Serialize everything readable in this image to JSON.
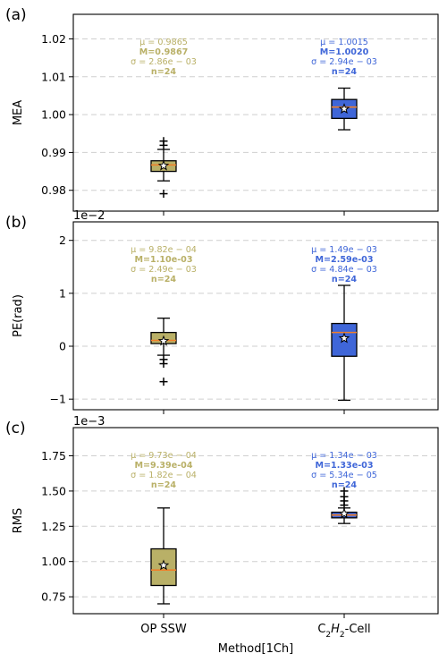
{
  "colors": {
    "op_ssw": "#b9b067",
    "c2h2": "#3f66d8",
    "median": "#f07f2a",
    "grid": "#cfcfcf",
    "mean_marker": "#ffffff"
  },
  "xlabel": "Method[1Ch]",
  "categories": [
    "OP SSW",
    "C2H2-Cell"
  ],
  "category_display": [
    {
      "main": "OP SSW"
    },
    {
      "main": "C",
      "sub1": "2",
      "mid": "H",
      "sub2": "2",
      "tail": "-Cell"
    }
  ],
  "chart_data": [
    {
      "panel": "(a)",
      "type": "box",
      "ylabel": "MEA",
      "offset_text": "",
      "ylim": [
        0.9745,
        1.0265
      ],
      "yticks": [
        0.98,
        0.99,
        1.0,
        1.01,
        1.02
      ],
      "ytick_labels": [
        "0.98",
        "0.99",
        "1.00",
        "1.01",
        "1.02"
      ],
      "grid": true,
      "series": [
        {
          "category": "OP SSW",
          "whisker_low": 0.9825,
          "q1": 0.985,
          "median": 0.9867,
          "q3": 0.9878,
          "whisker_high": 0.9908,
          "mean": 0.9865,
          "outliers": [
            0.9791,
            0.9919,
            0.993
          ],
          "stats": {
            "mu": "μ = 0.9865",
            "median": "M=0.9867",
            "sigma": "σ = 2.86e − 03",
            "n": "n=24"
          }
        },
        {
          "category": "C2H2-Cell",
          "whisker_low": 0.996,
          "q1": 0.999,
          "median": 1.002,
          "q3": 1.004,
          "whisker_high": 1.007,
          "mean": 1.0015,
          "outliers": [],
          "stats": {
            "mu": "μ = 1.0015",
            "median": "M=1.0020",
            "sigma": "σ = 2.94e − 03",
            "n": "n=24"
          }
        }
      ]
    },
    {
      "panel": "(b)",
      "type": "box",
      "ylabel": "PE(rad)",
      "offset_text": "1e−2",
      "ylim": [
        -1.2,
        2.35
      ],
      "yticks": [
        -1,
        0,
        1,
        2
      ],
      "ytick_labels": [
        "−1",
        "0",
        "1",
        "2"
      ],
      "grid": true,
      "series": [
        {
          "category": "OP SSW",
          "whisker_low": -0.17,
          "q1": 0.05,
          "median": 0.11,
          "q3": 0.26,
          "whisker_high": 0.53,
          "mean": 0.098,
          "outliers": [
            -0.25,
            -0.33,
            -0.67
          ],
          "stats": {
            "mu": "μ = 9.82e − 04",
            "median": "M=1.10e-03",
            "sigma": "σ = 2.49e − 03",
            "n": "n=24"
          }
        },
        {
          "category": "C2H2-Cell",
          "whisker_low": -1.02,
          "q1": -0.19,
          "median": 0.26,
          "q3": 0.43,
          "whisker_high": 1.15,
          "mean": 0.149,
          "outliers": [],
          "stats": {
            "mu": "μ = 1.49e − 03",
            "median": "M=2.59e-03",
            "sigma": "σ = 4.84e − 03",
            "n": "n=24"
          }
        }
      ]
    },
    {
      "panel": "(c)",
      "type": "box",
      "ylabel": "RMS",
      "offset_text": "1e−3",
      "ylim": [
        0.63,
        1.95
      ],
      "yticks": [
        0.75,
        1.0,
        1.25,
        1.5,
        1.75
      ],
      "ytick_labels": [
        "0.75",
        "1.00",
        "1.25",
        "1.50",
        "1.75"
      ],
      "grid": true,
      "series": [
        {
          "category": "OP SSW",
          "whisker_low": 0.7,
          "q1": 0.83,
          "median": 0.94,
          "q3": 1.09,
          "whisker_high": 1.38,
          "mean": 0.973,
          "outliers": [],
          "stats": {
            "mu": "μ = 9.73e − 04",
            "median": "M=9.39e-04",
            "sigma": "σ = 1.82e − 04",
            "n": "n=24"
          }
        },
        {
          "category": "C2H2-Cell",
          "whisker_low": 1.27,
          "q1": 1.31,
          "median": 1.33,
          "q3": 1.35,
          "whisker_high": 1.38,
          "mean": 1.34,
          "outliers": [
            1.4,
            1.43,
            1.46,
            1.5
          ],
          "stats": {
            "mu": "μ = 1.34e − 03",
            "median": "M=1.33e-03",
            "sigma": "σ = 5.34e − 05",
            "n": "n=24"
          }
        }
      ]
    }
  ]
}
